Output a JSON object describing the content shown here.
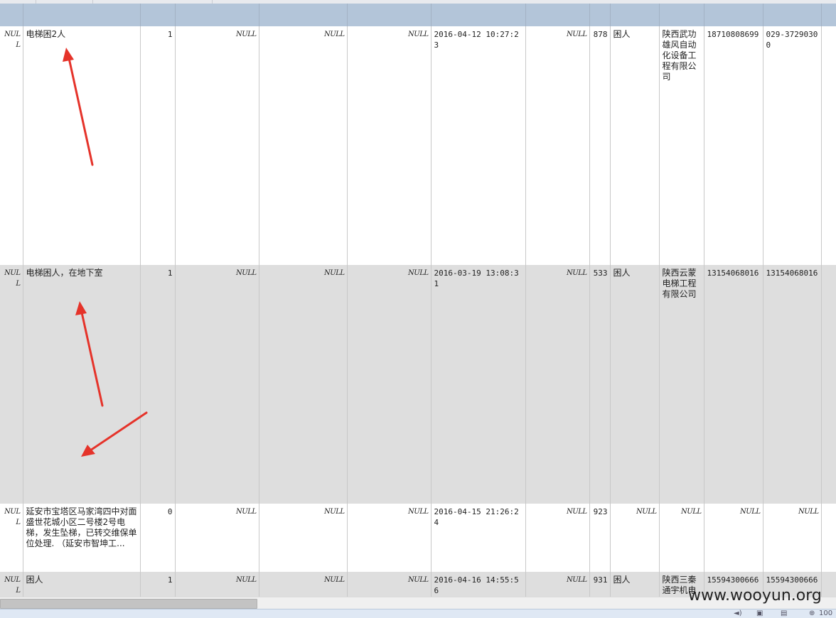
{
  "grid": {
    "rows": [
      {
        "c0": "NULL",
        "c1": "电梯困2人",
        "c2": "1",
        "c3": "NULL",
        "c4": "NULL",
        "c5": "NULL",
        "c6": "2016-04-12 10:27:23",
        "c7": "NULL",
        "c8": "878",
        "c9": "困人",
        "c10": "陕西武功雄风自动化设备工程有限公司",
        "c11": "18710808699",
        "c12": "029-37290300"
      },
      {
        "c0": "NULL",
        "c1": "电梯困人，在地下室",
        "c2": "1",
        "c3": "NULL",
        "c4": "NULL",
        "c5": "NULL",
        "c6": "2016-03-19 13:08:31",
        "c7": "NULL",
        "c8": "533",
        "c9": "困人",
        "c10": "陕西云蒙电梯工程有限公司",
        "c11": "13154068016",
        "c12": "13154068016"
      },
      {
        "c0": "NULL",
        "c1": "延安市宝塔区马家湾四中对面盛世花城小区二号楼2号电梯，发生坠梯，已转交维保单位处理. （延安市智坤工...",
        "c2": "0",
        "c3": "NULL",
        "c4": "NULL",
        "c5": "NULL",
        "c6": "2016-04-15 21:26:24",
        "c7": "NULL",
        "c8": "923",
        "c9": "NULL",
        "c10": "NULL",
        "c11": "NULL",
        "c12": "NULL"
      },
      {
        "c0": "NULL",
        "c1": "困人",
        "c2": "1",
        "c3": "NULL",
        "c4": "NULL",
        "c5": "NULL",
        "c6": "2016-04-16 14:55:56",
        "c7": "NULL",
        "c8": "931",
        "c9": "困人",
        "c10": "陕西三秦通宇机电",
        "c11": "15594300666",
        "c12": "15594300666"
      }
    ]
  },
  "watermark": "www.wooyun.org",
  "status": {
    "zoom": "100"
  },
  "colors": {
    "header": "#b3c5d9",
    "row_alt": "#dedede",
    "arrow": "#e5332a"
  },
  "icons": {
    "status_sound": "speaker-icon",
    "status_print": "printer-icon",
    "status_zoom": "zoom-icon"
  }
}
